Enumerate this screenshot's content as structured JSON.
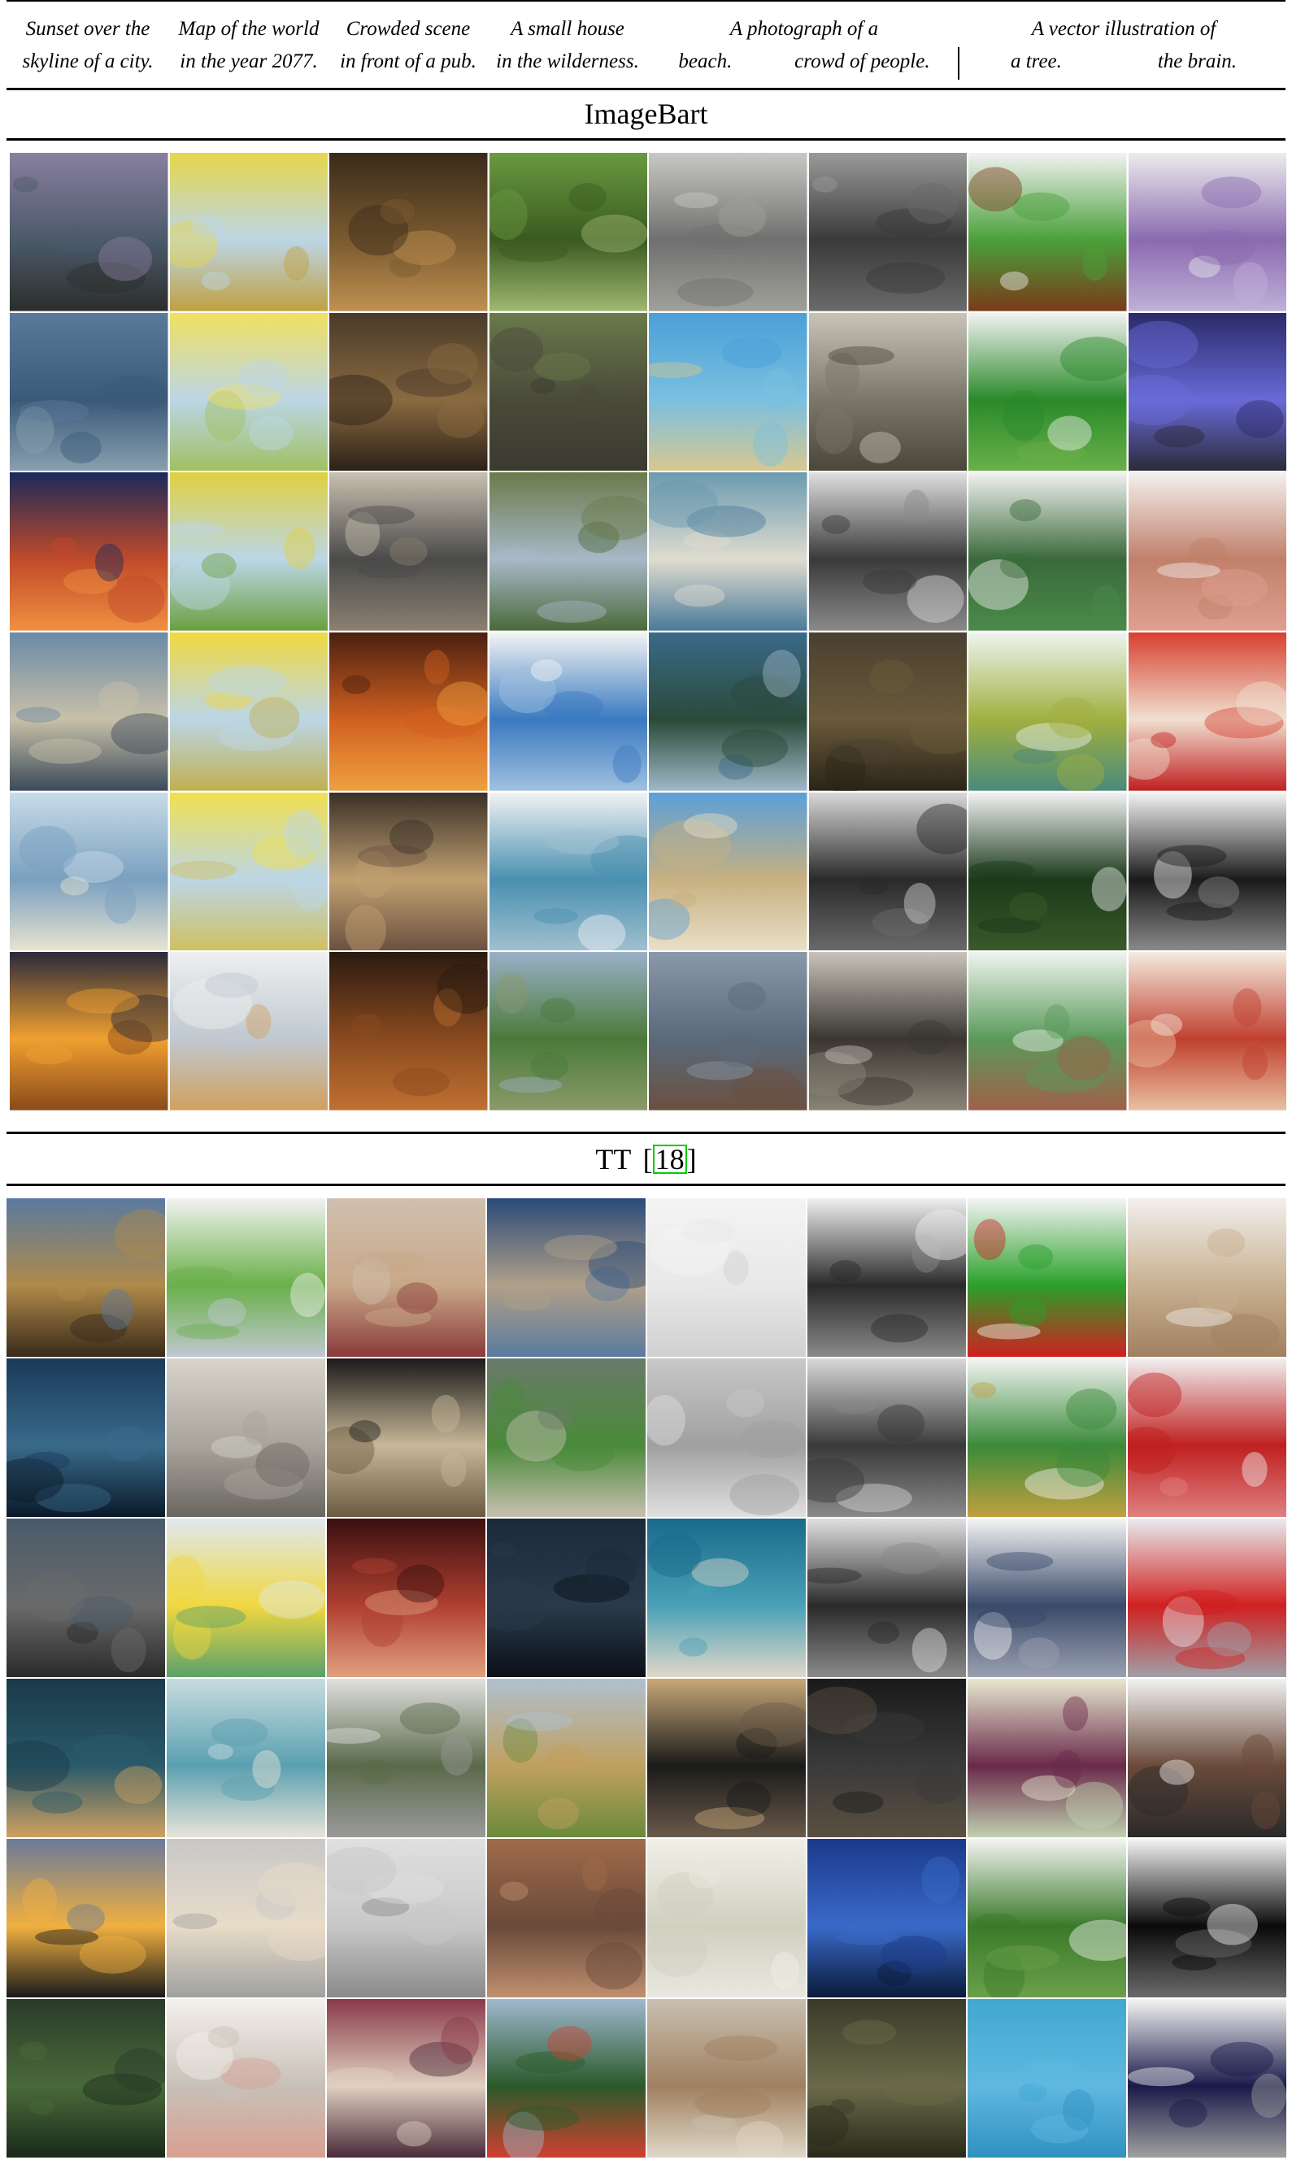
{
  "captions": [
    {
      "line1": "Sunset over the",
      "line2": "skyline of a city."
    },
    {
      "line1": "Map of the world",
      "line2": "in the year 2077."
    },
    {
      "line1": "Crowded scene",
      "line2": "in front of a pub."
    },
    {
      "line1": "A small house",
      "line2": "in the wilderness."
    },
    {
      "line1": "A photograph of a",
      "line2a": "beach.",
      "line2b": "crowd of people."
    },
    {
      "line1": "A vector illustration of",
      "line2a": "a tree.",
      "line2b": "the brain."
    }
  ],
  "sections": [
    {
      "title": "ImageBart",
      "cite": ""
    },
    {
      "title": "TT",
      "cite_open": "[",
      "cite": "18",
      "cite_close": "]"
    }
  ],
  "grids": [
    {
      "name": "imagebart",
      "rows": 6,
      "cols": 8,
      "cells": [
        [
          "#8a7fa0",
          "#4b5a6a",
          "#2c2e2c"
        ],
        [
          "#e6d64a",
          "#bcd6e6",
          "#c0a040"
        ],
        [
          "#3a2a1a",
          "#7a5a30",
          "#c09050"
        ],
        [
          "#6a9a40",
          "#3a5a20",
          "#a0b870"
        ],
        [
          "#c8c8c4",
          "#707070",
          "#a0a09a"
        ],
        [
          "#9a9a9a",
          "#3a3a3a",
          "#6a6a6a"
        ],
        [
          "#f2f2f2",
          "#4aa03a",
          "#7a3a1a"
        ],
        [
          "#ececee",
          "#8a6ab0",
          "#c0b0d8"
        ],
        [
          "#5a7a9a",
          "#3a5a7a",
          "#8aa0b0"
        ],
        [
          "#f0e060",
          "#bcd6e6",
          "#a0c060"
        ],
        [
          "#4a3a2a",
          "#8a6a40",
          "#2a2018"
        ],
        [
          "#6a7a4a",
          "#4a4a3a",
          "#3a3a30"
        ],
        [
          "#4aa0d8",
          "#7ac0e0",
          "#d8c890"
        ],
        [
          "#c8c4b8",
          "#7a766a",
          "#4a463a"
        ],
        [
          "#f2f2f2",
          "#2a8a2a",
          "#6ab04a"
        ],
        [
          "#2a2a6a",
          "#6a6ad8",
          "#2a2a3a"
        ],
        [
          "#1a2a5a",
          "#c04a2a",
          "#f09040"
        ],
        [
          "#e0d040",
          "#bcd6e6",
          "#6aa040"
        ],
        [
          "#c8c0b0",
          "#4a4a4a",
          "#8a8070"
        ],
        [
          "#6a7a4a",
          "#a8b8c8",
          "#4a6a3a"
        ],
        [
          "#6a9ab0",
          "#e0dcd0",
          "#4a7a98"
        ],
        [
          "#e0e0e0",
          "#3a3a3a",
          "#8a8a8a"
        ],
        [
          "#f2f2f2",
          "#3a6a3a",
          "#4a8a4a"
        ],
        [
          "#f4f0ee",
          "#c0806a",
          "#e0a090"
        ],
        [
          "#6a8aa8",
          "#c8c0a8",
          "#3a4a5a"
        ],
        [
          "#f0d840",
          "#bcd6e6",
          "#c0b050"
        ],
        [
          "#4a2010",
          "#d06020",
          "#f0a040"
        ],
        [
          "#f4f4f4",
          "#3a7ac0",
          "#a0c0e0"
        ],
        [
          "#3a6a8a",
          "#2a4a3a",
          "#a0b8c8"
        ],
        [
          "#4a4030",
          "#6a5a3a",
          "#2a2418"
        ],
        [
          "#eef4f0",
          "#a0b040",
          "#4a8a7a"
        ],
        [
          "#d84030",
          "#f0e0d0",
          "#c02020"
        ],
        [
          "#c8dce8",
          "#7aa0c0",
          "#e8e4d0"
        ],
        [
          "#f0e050",
          "#bcd6e6",
          "#d0c060"
        ],
        [
          "#3a3028",
          "#c0a070",
          "#6a5040"
        ],
        [
          "#f2f2f4",
          "#4a90b0",
          "#a0c0d0"
        ],
        [
          "#5aa0d8",
          "#c8b080",
          "#e8e0c8"
        ],
        [
          "#d8d8d8",
          "#2a2a2a",
          "#6a6a6a"
        ],
        [
          "#f2f2f2",
          "#1a3a1a",
          "#3a5a2a"
        ],
        [
          "#f4f4f4",
          "#1a1a1a",
          "#8a8a8a"
        ],
        [
          "#2a2a3a",
          "#f0a030",
          "#8a4a1a"
        ],
        [
          "#eef0f0",
          "#c0c8d0",
          "#d0a060"
        ],
        [
          "#2a1a10",
          "#8a4a20",
          "#c07030"
        ],
        [
          "#9ab0c8",
          "#4a7a3a",
          "#8a9a6a"
        ],
        [
          "#8a98a8",
          "#5a6a7a",
          "#6a5040"
        ],
        [
          "#c8c4bc",
          "#3a3630",
          "#8a8478"
        ],
        [
          "#f0f4f0",
          "#5a9a5a",
          "#a0604a"
        ],
        [
          "#f4ece0",
          "#c04030",
          "#e8c0a0"
        ]
      ]
    },
    {
      "name": "tt",
      "rows": 6,
      "cols": 8,
      "cells": [
        [
          "#5a7aa0",
          "#b08a4a",
          "#3a2a1a"
        ],
        [
          "#f2f2f2",
          "#6ab04a",
          "#c0c8d0"
        ],
        [
          "#d0c0b0",
          "#c8a888",
          "#8a3a3a"
        ],
        [
          "#2a4a7a",
          "#b0a088",
          "#5a7aa0"
        ],
        [
          "#f4f4f4",
          "#e8e8e8",
          "#d0d0d0"
        ],
        [
          "#f0f0f0",
          "#2a2a2a",
          "#8a8a8a"
        ],
        [
          "#f4f4f4",
          "#2aa02a",
          "#d02020"
        ],
        [
          "#f2f0ee",
          "#c8b090",
          "#a08060"
        ],
        [
          "#1a3a5a",
          "#3a6a8a",
          "#0a1a2a"
        ],
        [
          "#d8d4cc",
          "#a8a49c",
          "#6a6660"
        ],
        [
          "#1a1a1a",
          "#c8b898",
          "#6a5a40"
        ],
        [
          "#6a7a6a",
          "#4a8a3a",
          "#c8c0b0"
        ],
        [
          "#c8c8c8",
          "#a0a0a0",
          "#e0e0e0"
        ],
        [
          "#d8d8d8",
          "#3a3a3a",
          "#8a8a8a"
        ],
        [
          "#f4f4f4",
          "#3a8a3a",
          "#c0a040"
        ],
        [
          "#f0f0f0",
          "#c02020",
          "#e08080"
        ],
        [
          "#4a5a6a",
          "#6a6a6a",
          "#2a2a2a"
        ],
        [
          "#e0e8f0",
          "#f0d840",
          "#5aa06a"
        ],
        [
          "#3a1010",
          "#b04030",
          "#e0a080"
        ],
        [
          "#1a2a3a",
          "#2a3a4a",
          "#0a1018"
        ],
        [
          "#1a6a8a",
          "#4aa0b8",
          "#e0d8c8"
        ],
        [
          "#e0e0e0",
          "#2a2a2a",
          "#8a8a8a"
        ],
        [
          "#f4f4f4",
          "#3a4a6a",
          "#9aa0b0"
        ],
        [
          "#e8ecf0",
          "#d02020",
          "#a0a0a8"
        ],
        [
          "#1a3a4a",
          "#2a5a6a",
          "#d0a060"
        ],
        [
          "#c8dce0",
          "#5aa0b0",
          "#e8e4d8"
        ],
        [
          "#e0e0e0",
          "#5a6a4a",
          "#9a9a9a"
        ],
        [
          "#b0c0d0",
          "#c0a060",
          "#6a8a3a"
        ],
        [
          "#c8a878",
          "#1a1a1a",
          "#6a5a4a"
        ],
        [
          "#1a1a1a",
          "#3a3a3a",
          "#5a5040"
        ],
        [
          "#e8e8d0",
          "#6a2a4a",
          "#c0d0b0"
        ],
        [
          "#f2f2f2",
          "#6a4a3a",
          "#2a2a2a"
        ],
        [
          "#6a7a9a",
          "#f0b040",
          "#1a1a1a"
        ],
        [
          "#c8c8c8",
          "#e8dcc8",
          "#a0a0a0"
        ],
        [
          "#e0e0e0",
          "#c8c8c8",
          "#8a8a8a"
        ],
        [
          "#a06a4a",
          "#6a4a3a",
          "#c09070"
        ],
        [
          "#f0f0e8",
          "#d0d0c0",
          "#e8e8e0"
        ],
        [
          "#1a3a8a",
          "#3a6ac8",
          "#0a1a3a"
        ],
        [
          "#f4f4f4",
          "#3a7a2a",
          "#6aa04a"
        ],
        [
          "#f4f4f4",
          "#0a0a0a",
          "#6a6a6a"
        ],
        [
          "#2a3a2a",
          "#4a6a3a",
          "#1a2a1a"
        ],
        [
          "#f4f0ec",
          "#c8c0b8",
          "#d8a090"
        ],
        [
          "#8a3a4a",
          "#e0d0c0",
          "#4a2a3a"
        ],
        [
          "#a0b8d0",
          "#2a5a2a",
          "#d04030"
        ],
        [
          "#c8c0b0",
          "#a08060",
          "#e0d8c8"
        ],
        [
          "#3a3a2a",
          "#6a6a4a",
          "#2a2a1a"
        ],
        [
          "#40a8d0",
          "#60b8e0",
          "#3090c0"
        ],
        [
          "#f4f4f4",
          "#1a1a4a",
          "#a0a0a0"
        ]
      ]
    }
  ]
}
